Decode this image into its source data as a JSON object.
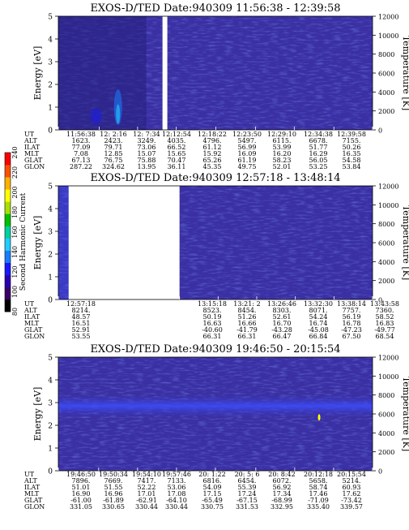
{
  "colorbar": {
    "label": "Second Harmonic Current",
    "ticks": [
      "80",
      "100",
      "120",
      "140",
      "160",
      "180",
      "200",
      "220",
      "240"
    ],
    "colors": [
      "#000000",
      "#3b0066",
      "#2a00b0",
      "#1818ff",
      "#1a7dff",
      "#22ccff",
      "#00d0a0",
      "#00c000",
      "#a8e000",
      "#ffff00",
      "#ffb000",
      "#ff5000",
      "#ff0000"
    ]
  },
  "chart_data": [
    {
      "type": "heatmap",
      "title": "EXOS-D/TED   Date:940309  11:56:38 - 12:39:58",
      "ylabel": "Energy [eV]",
      "ylabel_right": "Temperature [K]",
      "ylim": [
        0,
        5
      ],
      "ylim_right": [
        0,
        12000
      ],
      "yticks": [
        "0",
        "1",
        "2",
        "3",
        "4",
        "5"
      ],
      "yticks_right": [
        "0",
        "2000",
        "4000",
        "6000",
        "8000",
        "10000",
        "12000"
      ],
      "data_gap": [
        "12:11:00",
        "12:11:40"
      ],
      "row_labels": [
        "UT",
        "ALT",
        "ILAT",
        "MLT",
        "GLAT",
        "GLON"
      ],
      "columns": [
        [
          "11:56:38",
          "1623.",
          "77.09",
          "7.08",
          "67.13",
          "287.22"
        ],
        [
          "12: 2:16",
          "2423.",
          "79.71",
          "12.85",
          "76.75",
          "324.62"
        ],
        [
          "12: 7:34",
          "3249.",
          "73.06",
          "15.07",
          "75.88",
          "13.95"
        ],
        [
          "12:12:54",
          "4035.",
          "66.52",
          "15.65",
          "70.47",
          "36.11"
        ],
        [
          "12:18:22",
          "4796.",
          "61.12",
          "15.92",
          "65.26",
          "45.35"
        ],
        [
          "12:23:50",
          "5497.",
          "56.99",
          "16.09",
          "61.19",
          "49.75"
        ],
        [
          "12:29:10",
          "6115.",
          "53.99",
          "16.20",
          "58.23",
          "52.01"
        ],
        [
          "12:34:38",
          "6678.",
          "51.77",
          "16.29",
          "56.05",
          "53.25"
        ],
        [
          "12:39:58",
          "7155.",
          "50.26",
          "16.35",
          "54.58",
          "53.84"
        ]
      ]
    },
    {
      "type": "heatmap",
      "title": "EXOS-D/TED   Date:940309  12:57:18 - 13:48:14",
      "ylabel": "Energy [eV]",
      "ylabel_right": "Temperature [K]",
      "ylim": [
        0,
        5
      ],
      "ylim_right": [
        0,
        12000
      ],
      "yticks": [
        "0",
        "1",
        "2",
        "3",
        "4",
        "5"
      ],
      "yticks_right": [
        "0",
        "2000",
        "4000",
        "6000",
        "8000",
        "10000",
        "12000"
      ],
      "data_gap": [
        "12:58:50",
        "13:15:18"
      ],
      "row_labels": [
        "UT",
        "ALT",
        "ILAT",
        "MLT",
        "GLAT",
        "GLON"
      ],
      "columns": [
        [
          "12:57:18",
          "8214.",
          "48.57",
          "16.51",
          "52.91",
          "53.55"
        ],
        [
          "",
          "",
          "",
          "",
          "",
          ""
        ],
        [
          "",
          "",
          "",
          "",
          "",
          ""
        ],
        [
          "",
          "",
          "",
          "",
          "",
          ""
        ],
        [
          "13:15:18",
          "8523.",
          "50.19",
          "16.63",
          "-40.60",
          "66.31"
        ],
        [
          "13:21: 2",
          "8454.",
          "51.26",
          "16.66",
          "-41.79",
          "66.31"
        ],
        [
          "13:26:46",
          "8303.",
          "52.61",
          "16.70",
          "-43.28",
          "66.47"
        ],
        [
          "13:32:30",
          "8071.",
          "54.24",
          "16.74",
          "-45.08",
          "66.84"
        ],
        [
          "13:38:14",
          "7757.",
          "56.19",
          "16.78",
          "-47.23",
          "67.50"
        ],
        [
          "13:43:58",
          "7360.",
          "58.52",
          "16.83",
          "-49.77",
          "68.54"
        ]
      ]
    },
    {
      "type": "heatmap",
      "title": "EXOS-D/TED   Date:940309  19:46:50 - 20:15:54",
      "ylabel": "Energy [eV]",
      "ylabel_right": "Temperature [K]",
      "ylim": [
        0,
        5
      ],
      "ylim_right": [
        0,
        12000
      ],
      "yticks": [
        "0",
        "1",
        "2",
        "3",
        "4",
        "5"
      ],
      "yticks_right": [
        "0",
        "2000",
        "4000",
        "6000",
        "8000",
        "10000",
        "12000"
      ],
      "row_labels": [
        "UT",
        "ALT",
        "ILAT",
        "MLT",
        "GLAT",
        "GLON"
      ],
      "columns": [
        [
          "19:46:50",
          "7896.",
          "51.01",
          "16.90",
          "-61.00",
          "331.05"
        ],
        [
          "19:50:34",
          "7669.",
          "51.55",
          "16.96",
          "-61.89",
          "330.65"
        ],
        [
          "19:54:10",
          "7417.",
          "52.22",
          "17.01",
          "-62.91",
          "330.44"
        ],
        [
          "19:57:46",
          "7133.",
          "53.06",
          "17.08",
          "-64.10",
          "330.44"
        ],
        [
          "20: 1:22",
          "6816.",
          "54.09",
          "17.15",
          "-65.49",
          "330.75"
        ],
        [
          "20: 5: 6",
          "6454.",
          "55.39",
          "17.24",
          "-67.15",
          "331.53"
        ],
        [
          "20: 8:42",
          "6072.",
          "56.92",
          "17.34",
          "-68.99",
          "332.95"
        ],
        [
          "20:12:18",
          "5658.",
          "58.74",
          "17.46",
          "-71.09",
          "335.40"
        ],
        [
          "20:15:54",
          "5214.",
          "60.93",
          "17.62",
          "-73.42",
          "339.57"
        ]
      ]
    }
  ]
}
